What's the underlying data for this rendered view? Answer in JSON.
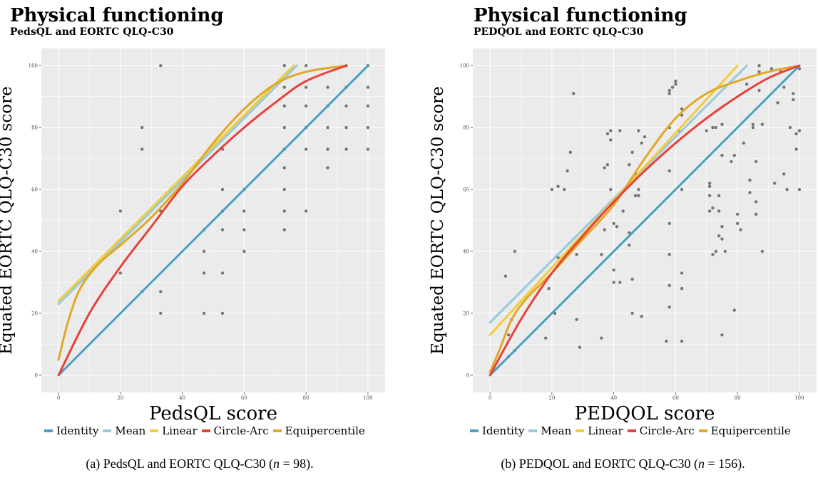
{
  "figure": {
    "legend_labels": [
      "Identity",
      "Mean",
      "Linear",
      "Circle-Arc",
      "Equipercentile"
    ],
    "colors": {
      "Identity": "#4c9fc0",
      "Mean": "#98c9dc",
      "Linear": "#f2cb3a",
      "Circle-Arc": "#e6413a",
      "Equipercentile": "#e0a826",
      "panel_background": "#ebebeb",
      "grid": "#ffffff",
      "points": "#4d4d4d"
    }
  },
  "chart_data": [
    {
      "type": "scatter",
      "title": "Physical functioning",
      "subtitle": "PedsQL and EORTC QLQ-C30",
      "xlabel": "PedsQL score",
      "ylabel": "Equated EORTC QLQ-C30 score",
      "caption": "(a) PedsQL and EORTC QLQ-C30 (n = 98).",
      "caption_parts": {
        "before": "(a) PedsQL and EORTC QLQ-C30 (",
        "italic": "n",
        "after": " = 98)."
      },
      "xlim": [
        0,
        100
      ],
      "ylim": [
        0,
        100
      ],
      "xticks": [
        0,
        20,
        40,
        60,
        80,
        100
      ],
      "yticks": [
        0,
        20,
        40,
        60,
        80,
        100
      ],
      "grid": true,
      "legend_position": "bottom",
      "points": [
        [
          20,
          53
        ],
        [
          20,
          33
        ],
        [
          27,
          80
        ],
        [
          27,
          73
        ],
        [
          27,
          27
        ],
        [
          33,
          100
        ],
        [
          33,
          53
        ],
        [
          33,
          27
        ],
        [
          33,
          20
        ],
        [
          47,
          47
        ],
        [
          47,
          40
        ],
        [
          47,
          33
        ],
        [
          47,
          20
        ],
        [
          53,
          73
        ],
        [
          53,
          60
        ],
        [
          53,
          53
        ],
        [
          53,
          47
        ],
        [
          53,
          33
        ],
        [
          53,
          20
        ],
        [
          60,
          60
        ],
        [
          60,
          53
        ],
        [
          60,
          47
        ],
        [
          60,
          40
        ],
        [
          73,
          100
        ],
        [
          73,
          93
        ],
        [
          73,
          87
        ],
        [
          73,
          80
        ],
        [
          73,
          73
        ],
        [
          73,
          67
        ],
        [
          73,
          60
        ],
        [
          73,
          53
        ],
        [
          73,
          47
        ],
        [
          80,
          100
        ],
        [
          80,
          93
        ],
        [
          80,
          87
        ],
        [
          80,
          80
        ],
        [
          80,
          73
        ],
        [
          80,
          53
        ],
        [
          87,
          93
        ],
        [
          87,
          87
        ],
        [
          87,
          80
        ],
        [
          87,
          73
        ],
        [
          87,
          67
        ],
        [
          93,
          100
        ],
        [
          93,
          93
        ],
        [
          93,
          87
        ],
        [
          93,
          80
        ],
        [
          93,
          73
        ],
        [
          100,
          100
        ],
        [
          100,
          93
        ],
        [
          100,
          87
        ],
        [
          100,
          80
        ],
        [
          100,
          73
        ]
      ],
      "series": [
        {
          "name": "Identity",
          "x": [
            0,
            100
          ],
          "y": [
            0,
            100
          ]
        },
        {
          "name": "Mean",
          "x": [
            0,
            77
          ],
          "y": [
            23,
            100
          ]
        },
        {
          "name": "Linear",
          "x": [
            0,
            76
          ],
          "y": [
            24,
            100
          ]
        },
        {
          "name": "Circle-Arc",
          "x": [
            0,
            10,
            20,
            30,
            40,
            50,
            60,
            70,
            80,
            93
          ],
          "y": [
            0,
            20,
            35,
            48,
            61,
            71,
            80,
            88,
            95,
            100
          ]
        },
        {
          "name": "Equipercentile",
          "x": [
            0,
            3,
            7,
            13,
            20,
            30,
            40,
            50,
            60,
            70,
            80,
            93
          ],
          "y": [
            5,
            17,
            28,
            36,
            42,
            51,
            62,
            75,
            86,
            94,
            98,
            100
          ]
        }
      ]
    },
    {
      "type": "scatter",
      "title": "Physical functioning",
      "subtitle": "PEDQOL and EORTC QLQ-C30",
      "xlabel": "PEDQOL score",
      "ylabel": "Equated EORTC QLQ-C30 score",
      "caption": "(b) PEDQOL and EORTC QLQ-C30 (n = 156).",
      "caption_parts": {
        "before": "(b) PEDQOL and EORTC QLQ-C30 (",
        "italic": "n",
        "after": " = 156)."
      },
      "xlim": [
        0,
        100
      ],
      "ylim": [
        0,
        100
      ],
      "xticks": [
        0,
        20,
        40,
        60,
        80,
        100
      ],
      "yticks": [
        0,
        20,
        40,
        60,
        80,
        100
      ],
      "grid": true,
      "legend_position": "bottom",
      "points": [
        [
          5,
          32
        ],
        [
          6,
          13
        ],
        [
          6,
          6
        ],
        [
          7,
          18
        ],
        [
          8,
          40
        ],
        [
          8,
          8
        ],
        [
          18,
          12
        ],
        [
          19,
          28
        ],
        [
          20,
          60
        ],
        [
          21,
          20
        ],
        [
          22,
          61
        ],
        [
          22,
          38
        ],
        [
          24,
          60
        ],
        [
          25,
          66
        ],
        [
          26,
          72
        ],
        [
          27,
          91
        ],
        [
          28,
          39
        ],
        [
          28,
          18
        ],
        [
          29,
          9
        ],
        [
          36,
          39
        ],
        [
          36,
          12
        ],
        [
          37,
          67
        ],
        [
          37,
          47
        ],
        [
          38,
          78
        ],
        [
          38,
          68
        ],
        [
          39,
          79
        ],
        [
          39,
          76
        ],
        [
          39,
          60
        ],
        [
          40,
          49
        ],
        [
          40,
          34
        ],
        [
          40,
          30
        ],
        [
          41,
          48
        ],
        [
          42,
          79
        ],
        [
          42,
          30
        ],
        [
          43,
          53
        ],
        [
          45,
          68
        ],
        [
          45,
          46
        ],
        [
          45,
          42
        ],
        [
          46,
          72
        ],
        [
          46,
          31
        ],
        [
          46,
          20
        ],
        [
          47,
          65
        ],
        [
          47,
          58
        ],
        [
          48,
          79
        ],
        [
          48,
          60
        ],
        [
          48,
          58
        ],
        [
          49,
          75
        ],
        [
          49,
          19
        ],
        [
          50,
          77
        ],
        [
          57,
          11
        ],
        [
          58,
          92
        ],
        [
          58,
          91
        ],
        [
          58,
          80
        ],
        [
          58,
          66
        ],
        [
          58,
          49
        ],
        [
          58,
          39
        ],
        [
          58,
          29
        ],
        [
          58,
          22
        ],
        [
          59,
          93
        ],
        [
          60,
          95
        ],
        [
          60,
          94
        ],
        [
          61,
          79
        ],
        [
          62,
          86
        ],
        [
          62,
          84
        ],
        [
          62,
          60
        ],
        [
          62,
          33
        ],
        [
          62,
          28
        ],
        [
          62,
          11
        ],
        [
          70,
          79
        ],
        [
          71,
          62
        ],
        [
          71,
          61
        ],
        [
          71,
          58
        ],
        [
          71,
          53
        ],
        [
          72,
          80
        ],
        [
          72,
          54
        ],
        [
          72,
          39
        ],
        [
          73,
          40
        ],
        [
          73,
          80
        ],
        [
          74,
          58
        ],
        [
          74,
          53
        ],
        [
          74,
          45
        ],
        [
          75,
          81
        ],
        [
          75,
          71
        ],
        [
          75,
          48
        ],
        [
          75,
          44
        ],
        [
          75,
          13
        ],
        [
          76,
          40
        ],
        [
          78,
          69
        ],
        [
          79,
          71
        ],
        [
          79,
          21
        ],
        [
          80,
          52
        ],
        [
          80,
          49
        ],
        [
          81,
          47
        ],
        [
          82,
          75
        ],
        [
          83,
          94
        ],
        [
          84,
          63
        ],
        [
          84,
          59
        ],
        [
          85,
          81
        ],
        [
          85,
          80
        ],
        [
          86,
          69
        ],
        [
          86,
          56
        ],
        [
          86,
          52
        ],
        [
          87,
          100
        ],
        [
          87,
          98
        ],
        [
          87,
          92
        ],
        [
          88,
          40
        ],
        [
          88,
          81
        ],
        [
          91,
          99
        ],
        [
          92,
          62
        ],
        [
          93,
          88
        ],
        [
          94,
          98
        ],
        [
          95,
          93
        ],
        [
          95,
          65
        ],
        [
          96,
          60
        ],
        [
          97,
          80
        ],
        [
          98,
          91
        ],
        [
          98,
          89
        ],
        [
          99,
          78
        ],
        [
          99,
          73
        ],
        [
          100,
          99
        ],
        [
          100,
          79
        ],
        [
          100,
          60
        ]
      ],
      "series": [
        {
          "name": "Identity",
          "x": [
            0,
            100
          ],
          "y": [
            0,
            100
          ]
        },
        {
          "name": "Mean",
          "x": [
            0,
            83
          ],
          "y": [
            17,
            100
          ]
        },
        {
          "name": "Linear",
          "x": [
            0,
            80
          ],
          "y": [
            13,
            100
          ]
        },
        {
          "name": "Circle-Arc",
          "x": [
            0,
            10,
            20,
            30,
            40,
            50,
            60,
            70,
            80,
            90,
            100
          ],
          "y": [
            0,
            18,
            33,
            45,
            56,
            66,
            75,
            83,
            90,
            96,
            100
          ]
        },
        {
          "name": "Equipercentile",
          "x": [
            0,
            3,
            7,
            12,
            20,
            30,
            40,
            50,
            60,
            70,
            80,
            90,
            100
          ],
          "y": [
            1,
            8,
            18,
            25,
            33,
            44,
            55,
            70,
            83,
            91,
            95,
            98,
            100
          ]
        }
      ]
    }
  ]
}
